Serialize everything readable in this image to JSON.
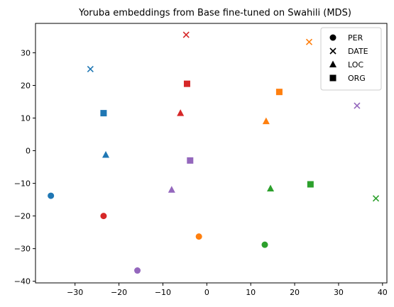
{
  "chart_data": {
    "type": "scatter",
    "title": "Yoruba embeddings from Base fine-tuned on Swahili (MDS)",
    "xlabel": "",
    "ylabel": "",
    "xlim": [
      -39,
      41
    ],
    "ylim": [
      -40.5,
      39
    ],
    "xticks": [
      -30,
      -20,
      -10,
      0,
      10,
      20,
      30,
      40
    ],
    "yticks": [
      -40,
      -30,
      -20,
      -10,
      0,
      10,
      20,
      30
    ],
    "grid": false,
    "legend": {
      "placement": "top-right",
      "entries": [
        {
          "label": "PER",
          "marker": "circle"
        },
        {
          "label": "DATE",
          "marker": "x"
        },
        {
          "label": "LOC",
          "marker": "triangle"
        },
        {
          "label": "ORG",
          "marker": "square"
        }
      ]
    },
    "colors": {
      "blue": "#1f77b4",
      "orange": "#ff7f0e",
      "green": "#2ca02c",
      "red": "#d62728",
      "purple": "#9467bd"
    },
    "points": [
      {
        "x": -35.5,
        "y": -13.8,
        "marker": "circle",
        "color": "blue"
      },
      {
        "x": -26.5,
        "y": 25.0,
        "marker": "x",
        "color": "blue"
      },
      {
        "x": -23.0,
        "y": -1.3,
        "marker": "triangle",
        "color": "blue"
      },
      {
        "x": -23.5,
        "y": 11.5,
        "marker": "square",
        "color": "blue"
      },
      {
        "x": -1.8,
        "y": -26.3,
        "marker": "circle",
        "color": "orange"
      },
      {
        "x": 23.3,
        "y": 33.3,
        "marker": "x",
        "color": "orange"
      },
      {
        "x": 13.5,
        "y": 9.0,
        "marker": "triangle",
        "color": "orange"
      },
      {
        "x": 16.5,
        "y": 18.0,
        "marker": "square",
        "color": "orange"
      },
      {
        "x": 13.2,
        "y": -28.8,
        "marker": "circle",
        "color": "green"
      },
      {
        "x": 38.5,
        "y": -14.6,
        "marker": "x",
        "color": "green"
      },
      {
        "x": 14.5,
        "y": -11.6,
        "marker": "triangle",
        "color": "green"
      },
      {
        "x": 23.6,
        "y": -10.3,
        "marker": "square",
        "color": "green"
      },
      {
        "x": -23.5,
        "y": -20.0,
        "marker": "circle",
        "color": "red"
      },
      {
        "x": -4.7,
        "y": 35.5,
        "marker": "x",
        "color": "red"
      },
      {
        "x": -6.0,
        "y": 11.5,
        "marker": "triangle",
        "color": "red"
      },
      {
        "x": -4.5,
        "y": 20.5,
        "marker": "square",
        "color": "red"
      },
      {
        "x": -15.8,
        "y": -36.7,
        "marker": "circle",
        "color": "purple"
      },
      {
        "x": 34.2,
        "y": 13.8,
        "marker": "x",
        "color": "purple"
      },
      {
        "x": -8.0,
        "y": -12.0,
        "marker": "triangle",
        "color": "purple"
      },
      {
        "x": -3.8,
        "y": -3.0,
        "marker": "square",
        "color": "purple"
      }
    ]
  }
}
